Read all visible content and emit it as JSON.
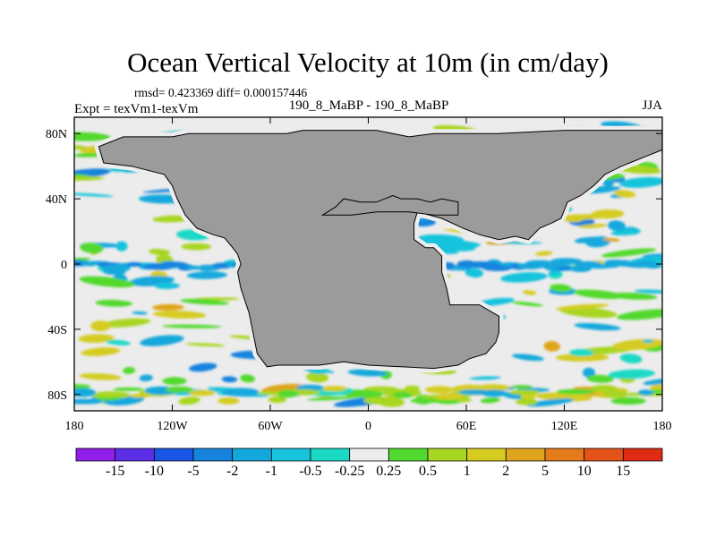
{
  "chart_data": {
    "type": "heatmap",
    "title": "Ocean Vertical Velocity at 10m (in cm/day)",
    "stats_text": "rmsd= 0.423369 diff= 0.000157446",
    "left_label": "Expt = texVm1-texVm",
    "center_label": "190_8_MaBP - 190_8_MaBP",
    "right_label": "JJA",
    "x_axis": {
      "range": [
        -180,
        180
      ],
      "ticks": [
        -180,
        -120,
        -60,
        0,
        60,
        120,
        180
      ],
      "tick_labels": [
        "180",
        "120W",
        "60W",
        "0",
        "60E",
        "120E",
        "180"
      ]
    },
    "y_axis": {
      "range": [
        -90,
        90
      ],
      "ticks": [
        -80,
        -40,
        0,
        40,
        80
      ],
      "tick_labels": [
        "80S",
        "40S",
        "0",
        "40N",
        "80N"
      ]
    },
    "colorbar": {
      "labels": [
        "-15",
        "-10",
        "-5",
        "-2",
        "-1",
        "-0.5",
        "-0.25",
        "0.25",
        "0.5",
        "1",
        "2",
        "5",
        "10",
        "15"
      ],
      "colors": [
        "#8f1fe8",
        "#5d2ee8",
        "#1b55e6",
        "#1683de",
        "#13a8dc",
        "#18c3dc",
        "#1cd9c6",
        "#ececec",
        "#52d92f",
        "#a7d624",
        "#d4cc20",
        "#dfa51e",
        "#e47a1a",
        "#e3531a",
        "#de2c14"
      ]
    },
    "continents": [
      [
        [
          -120,
          78
        ],
        [
          -150,
          78
        ],
        [
          -165,
          72
        ],
        [
          -162,
          62
        ],
        [
          -145,
          60
        ],
        [
          -125,
          55
        ],
        [
          -120,
          48
        ],
        [
          -117,
          40
        ],
        [
          -112,
          30
        ],
        [
          -105,
          22
        ],
        [
          -95,
          18
        ],
        [
          -88,
          16
        ],
        [
          -83,
          10
        ],
        [
          -80,
          6
        ],
        [
          -78,
          0
        ],
        [
          -80,
          -5
        ],
        [
          -78,
          -15
        ],
        [
          -73,
          -30
        ],
        [
          -70,
          -45
        ],
        [
          -68,
          -55
        ],
        [
          -62,
          -63
        ],
        [
          -55,
          -62
        ],
        [
          -50,
          -62
        ],
        [
          -30,
          -62
        ],
        [
          -15,
          -60
        ],
        [
          0,
          -62
        ],
        [
          20,
          -63
        ],
        [
          40,
          -64
        ],
        [
          55,
          -62
        ],
        [
          62,
          -58
        ],
        [
          72,
          -55
        ],
        [
          78,
          -48
        ],
        [
          80,
          -42
        ],
        [
          80,
          -32
        ],
        [
          68,
          -25
        ],
        [
          50,
          -25
        ],
        [
          48,
          -15
        ],
        [
          45,
          -5
        ],
        [
          45,
          5
        ],
        [
          40,
          10
        ],
        [
          35,
          10
        ],
        [
          28,
          15
        ],
        [
          28,
          25
        ],
        [
          30,
          32
        ],
        [
          45,
          28
        ],
        [
          58,
          22
        ],
        [
          68,
          18
        ],
        [
          80,
          15
        ],
        [
          90,
          17
        ],
        [
          98,
          15
        ],
        [
          105,
          22
        ],
        [
          112,
          25
        ],
        [
          118,
          28
        ],
        [
          122,
          38
        ],
        [
          130,
          42
        ],
        [
          138,
          48
        ],
        [
          145,
          55
        ],
        [
          155,
          60
        ],
        [
          160,
          62
        ],
        [
          170,
          66
        ],
        [
          180,
          70
        ],
        [
          180,
          82
        ],
        [
          120,
          82
        ],
        [
          80,
          80
        ],
        [
          40,
          80
        ],
        [
          25,
          78
        ],
        [
          5,
          82
        ],
        [
          -40,
          82
        ],
        [
          -50,
          80
        ],
        [
          -110,
          80
        ],
        [
          -120,
          78
        ]
      ],
      [
        [
          -28,
          30
        ],
        [
          -20,
          35
        ],
        [
          -15,
          40
        ],
        [
          -5,
          38
        ],
        [
          5,
          38
        ],
        [
          15,
          42
        ],
        [
          20,
          40
        ],
        [
          30,
          40
        ],
        [
          38,
          38
        ],
        [
          45,
          40
        ],
        [
          55,
          38
        ],
        [
          55,
          30
        ],
        [
          40,
          30
        ],
        [
          25,
          32
        ],
        [
          5,
          32
        ],
        [
          -10,
          30
        ],
        [
          -28,
          30
        ]
      ]
    ]
  }
}
